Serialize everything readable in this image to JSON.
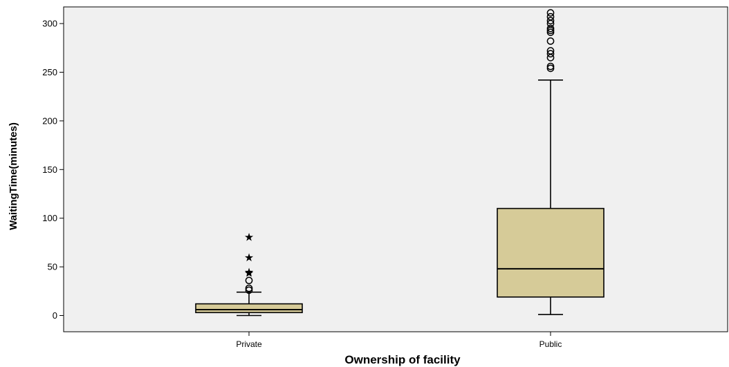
{
  "chart_data": {
    "type": "box",
    "title": "",
    "xlabel": "Ownership of facility",
    "ylabel": "WaitingTime(minutes)",
    "ylim": [
      -16,
      316
    ],
    "yticks": [
      0,
      50,
      100,
      150,
      200,
      250,
      300
    ],
    "grid": false,
    "legend": "none",
    "box_color": "#d6cb98",
    "plot_background": "#f0f0f0",
    "categories": [
      "Private",
      "Public"
    ],
    "boxes": [
      {
        "category": "Private",
        "whisker_low": 0,
        "q1": 3,
        "median": 6,
        "q3": 12,
        "whisker_high": 24,
        "outliers": [
          26,
          28,
          36
        ],
        "extremes": [
          44,
          45,
          60,
          81
        ]
      },
      {
        "category": "Public",
        "whisker_low": 1,
        "q1": 19,
        "median": 48,
        "q3": 110,
        "whisker_high": 242,
        "outliers": [
          254,
          256,
          265,
          269,
          272,
          282,
          291,
          293,
          295,
          300,
          303,
          307,
          311
        ],
        "extremes": []
      }
    ]
  }
}
